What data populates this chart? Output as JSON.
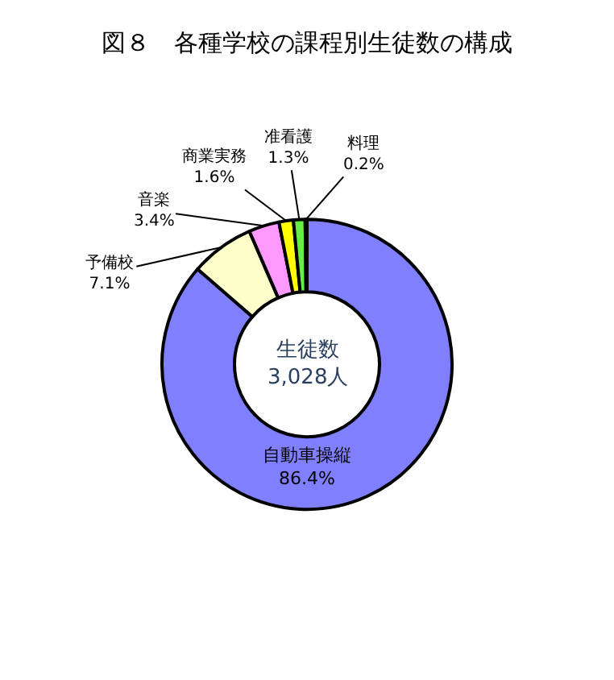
{
  "chart_data": {
    "type": "donut",
    "title": "図８　各種学校の課程別生徒数の構成",
    "categories": [
      "自動車操縦",
      "予備校",
      "音楽",
      "商業実務",
      "准看護",
      "料理"
    ],
    "values": [
      86.4,
      7.1,
      3.4,
      1.6,
      1.3,
      0.2
    ],
    "value_labels": [
      "86.4%",
      "7.1%",
      "3.4%",
      "1.6%",
      "1.3%",
      "0.2%"
    ],
    "colors": [
      "#8080ff",
      "#ffffcc",
      "#ff99ff",
      "#ffff00",
      "#66ee44",
      "#000080"
    ],
    "annotations": [
      "生徒数\n3,028人"
    ],
    "legend": false
  }
}
